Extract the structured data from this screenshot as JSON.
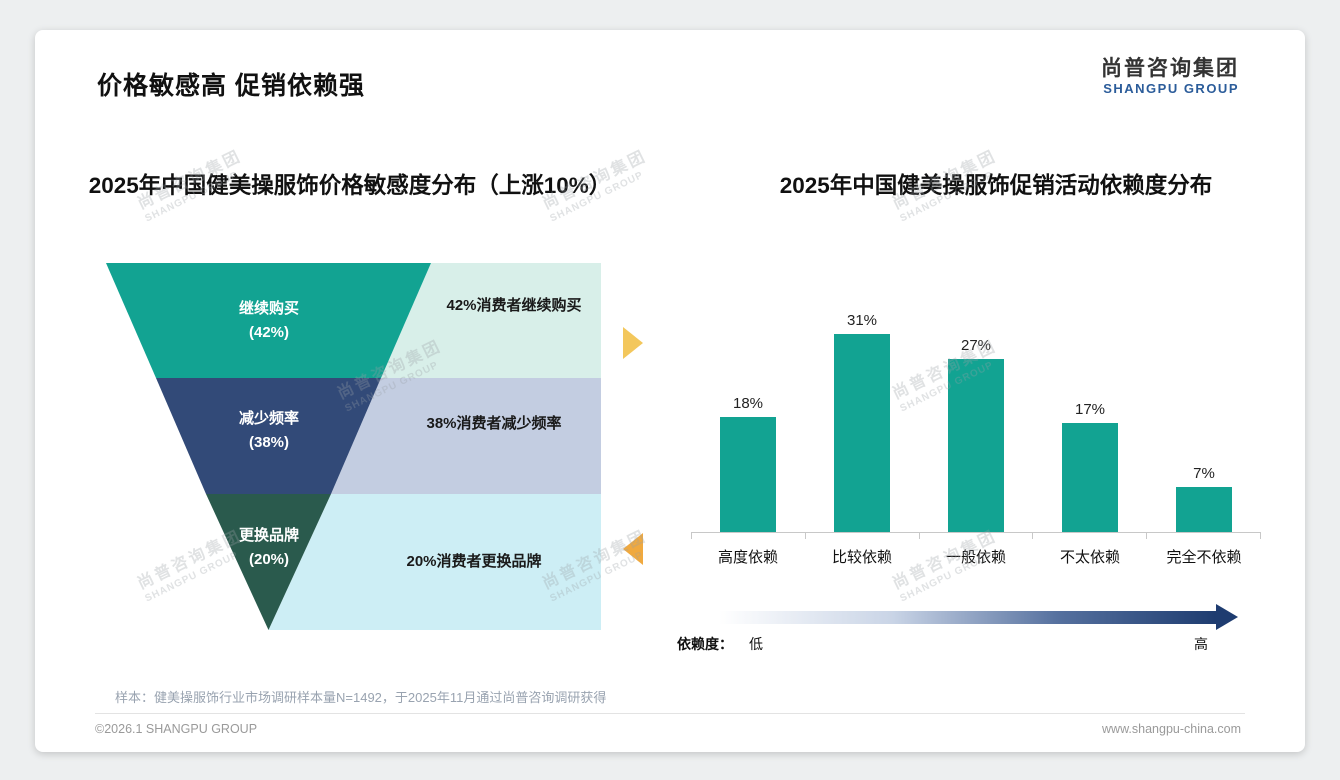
{
  "page": {
    "title": "价格敏感高 促销依赖强",
    "logo": {
      "cn": "尚普咨询集团",
      "en": "SHANGPU GROUP"
    },
    "watermark": {
      "cn": "尚普咨询集团",
      "en": "SHANGPU GROUP"
    },
    "footer": {
      "sample_note": "样本：健美操服饰行业市场调研样本量N=1492，于2025年11月通过尚普咨询调研获得",
      "copyright": "©2026.1 SHANGPU GROUP",
      "website": "www.shangpu-china.com"
    }
  },
  "chart_data": [
    {
      "type": "funnel",
      "title": "2025年中国健美操服饰价格敏感度分布（上涨10%）",
      "categories": [
        "继续购买",
        "减少频率",
        "更换品牌"
      ],
      "values": [
        42,
        38,
        20
      ],
      "unit": "%",
      "value_labels": [
        "(42%)",
        "(38%)",
        "(20%)"
      ],
      "annotations": [
        "42%消费者继续购买",
        "38%消费者减少频率",
        "20%消费者更换品牌"
      ],
      "colors": [
        "#12a392",
        "#324a78",
        "#2a5a4d"
      ],
      "bg_colors": [
        "#d8efe9",
        "#c3cde1",
        "#cdeef5"
      ],
      "marker_colors": [
        "#f3c75c",
        "#f0a93f"
      ]
    },
    {
      "type": "bar",
      "title": "2025年中国健美操服饰促销活动依赖度分布",
      "categories": [
        "高度依赖",
        "比较依赖",
        "一般依赖",
        "不太依赖",
        "完全不依赖"
      ],
      "values": [
        18,
        31,
        27,
        17,
        7
      ],
      "unit": "%",
      "value_labels": [
        "18%",
        "31%",
        "27%",
        "17%",
        "7%"
      ],
      "ylim": [
        0,
        35
      ],
      "grid": false,
      "bar_color": "#12a392",
      "axis": {
        "label": "依赖度：",
        "low": "低",
        "high": "高"
      },
      "gradient": [
        "#ffffff",
        "#1e3c70"
      ]
    }
  ]
}
